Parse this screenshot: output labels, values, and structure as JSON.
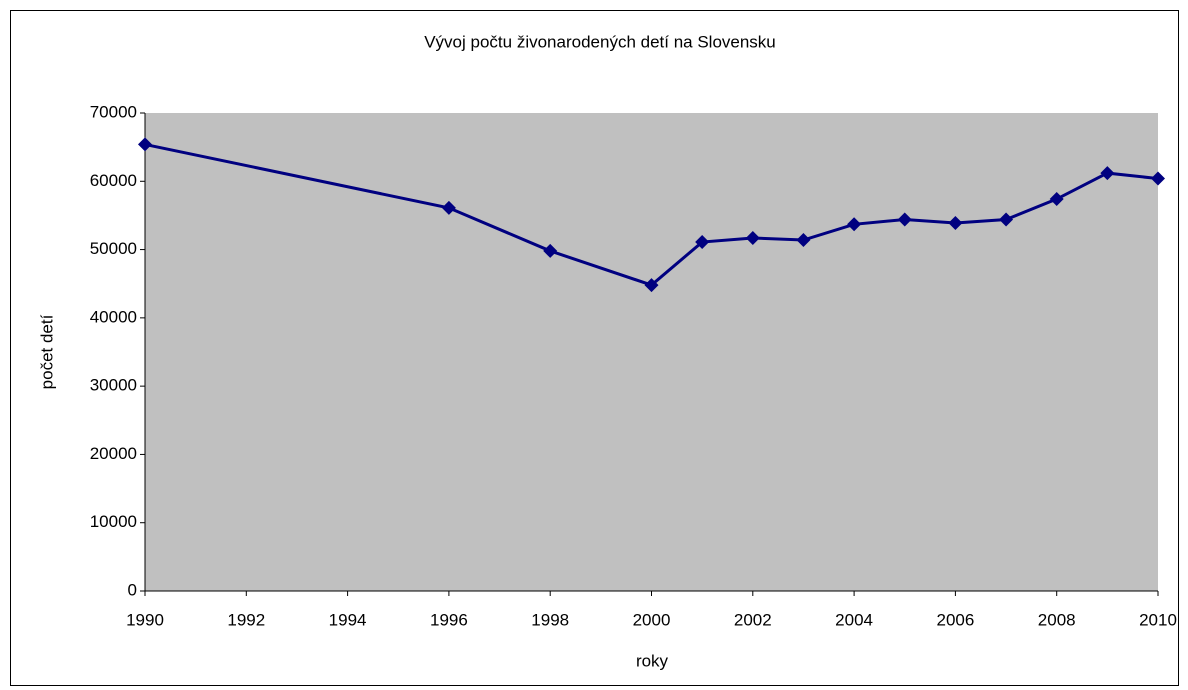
{
  "chart_data": {
    "type": "line",
    "title": "Vývoj počtu živonarodených detí na Slovensku",
    "x_label": "roky",
    "y_label": "počet detí",
    "x": [
      1990,
      1996,
      1998,
      2000,
      2001,
      2002,
      2003,
      2004,
      2005,
      2006,
      2007,
      2008,
      2009,
      2010
    ],
    "values": [
      65400,
      56100,
      49800,
      44800,
      51100,
      51700,
      51400,
      53700,
      54400,
      53900,
      54400,
      57400,
      61200,
      60400
    ],
    "color": "#000080",
    "background": "#c0c0c0",
    "xlim": [
      1990,
      2010
    ],
    "xticks": [
      1990,
      1992,
      1994,
      1996,
      1998,
      2000,
      2002,
      2004,
      2006,
      2008,
      2010
    ],
    "ylim": [
      0,
      70000
    ],
    "yticks": [
      0,
      10000,
      20000,
      30000,
      40000,
      50000,
      60000,
      70000
    ],
    "grid": false
  }
}
